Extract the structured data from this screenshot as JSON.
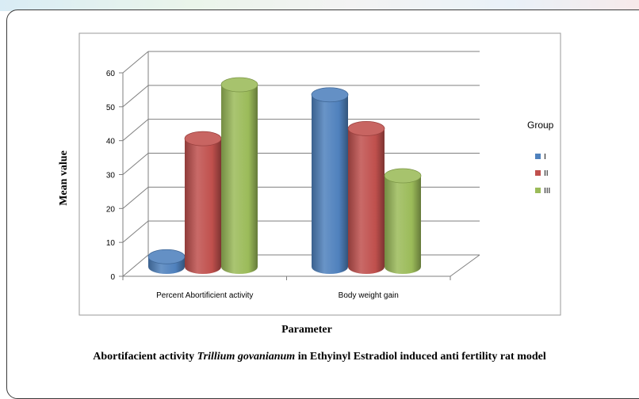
{
  "caption": {
    "prefix": "Abortifacient activity ",
    "species": "Trillium govanianum",
    "suffix": " in Ethyinyl Estradiol induced anti fertility rat model"
  },
  "chart_data": {
    "type": "bar",
    "style": "3d-cylinder",
    "categories": [
      "Percent Abortificient activity",
      "Body weight gain"
    ],
    "series": [
      {
        "name": "I",
        "values": [
          3,
          51
        ],
        "color": "#4f81bd"
      },
      {
        "name": "II",
        "values": [
          38,
          41
        ],
        "color": "#c0504d"
      },
      {
        "name": "III",
        "values": [
          54,
          27
        ],
        "color": "#9bbb59"
      }
    ],
    "xlabel": "Parameter",
    "ylabel": "Mean value",
    "ylim": [
      0,
      60
    ],
    "yticks": [
      0,
      10,
      20,
      30,
      40,
      50,
      60
    ],
    "legend_title": "Group",
    "legend_position": "right",
    "grid": true
  }
}
